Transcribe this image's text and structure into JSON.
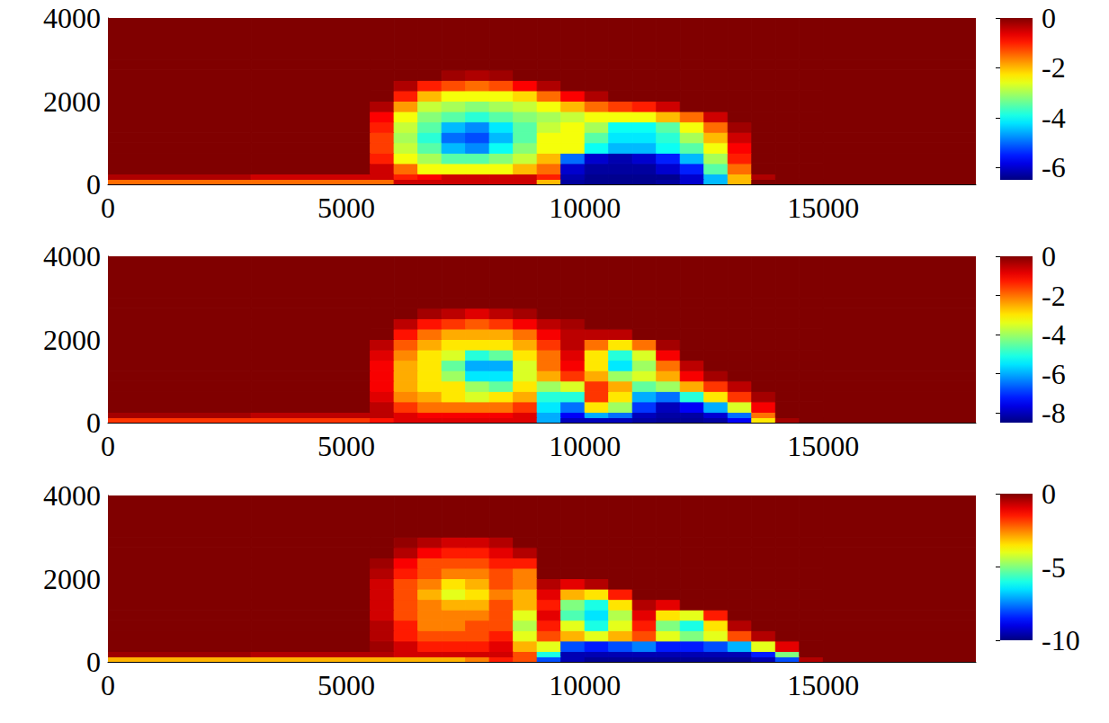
{
  "chart_data": [
    {
      "type": "heatmap",
      "xlim": [
        0,
        18200
      ],
      "ylim": [
        0,
        4000
      ],
      "xticks": [
        0,
        5000,
        10000,
        15000
      ],
      "yticks": [
        0,
        2000,
        4000
      ],
      "x_edges": [
        0,
        3000,
        5500,
        6000,
        6500,
        7000,
        7500,
        8000,
        8500,
        9000,
        9500,
        10000,
        10500,
        11000,
        11500,
        12000,
        12500,
        13000,
        13500,
        14000,
        14500,
        15000,
        18200
      ],
      "y_edges": [
        0,
        120,
        250,
        500,
        750,
        1000,
        1250,
        1500,
        1750,
        2000,
        2250,
        2500,
        2750,
        3000,
        4000
      ],
      "cells": [
        [
          -1.5,
          -1.5,
          -1.5,
          -0.5,
          -0.5,
          -0.5,
          -0.5,
          -0.5,
          -0.5,
          -2,
          -6.3,
          -6.4,
          -6.4,
          -6.4,
          -6.3,
          -6,
          -4.5,
          -2,
          0,
          0,
          0,
          0
        ],
        [
          -0.3,
          -0.5,
          -0.5,
          -1,
          -0.8,
          -0.5,
          -0.5,
          -0.5,
          -0.5,
          -1,
          -6.2,
          -6.4,
          -6.4,
          -6.4,
          -6.4,
          -6,
          -4.5,
          -2,
          -0.3,
          0,
          0,
          0
        ],
        [
          0,
          0,
          -0.5,
          -1.5,
          -2.5,
          -2.5,
          -2.5,
          -2.5,
          -2,
          -1.5,
          -6,
          -6.3,
          -6.3,
          -6.3,
          -6,
          -5.5,
          -3.5,
          -1.5,
          0,
          0,
          0,
          0
        ],
        [
          0,
          0,
          -1,
          -2.5,
          -3,
          -3.5,
          -3.5,
          -3.2,
          -2.8,
          -2,
          -5,
          -6,
          -6.2,
          -6,
          -5.5,
          -4.5,
          -3,
          -1,
          0,
          0,
          0,
          0
        ],
        [
          0,
          0,
          -1.2,
          -2.8,
          -3.5,
          -4.5,
          -4.8,
          -4,
          -3.2,
          -2.5,
          -2.5,
          -4,
          -4.5,
          -4.5,
          -4,
          -3.5,
          -2.5,
          -0.8,
          0,
          0,
          0,
          0
        ],
        [
          0,
          0,
          -1.2,
          -3,
          -3.8,
          -5,
          -5.2,
          -4.5,
          -3.5,
          -2.5,
          -2.5,
          -3.5,
          -4.2,
          -4.2,
          -3.8,
          -3,
          -2,
          -0.5,
          0,
          0,
          0,
          0
        ],
        [
          0,
          0,
          -1,
          -2.8,
          -3.5,
          -4.5,
          -4.8,
          -4.2,
          -3.5,
          -2.8,
          -2.5,
          -3,
          -4,
          -4,
          -3.5,
          -2.5,
          -1.5,
          -0.2,
          0,
          0,
          0,
          0
        ],
        [
          0,
          0,
          -0.8,
          -2.5,
          -3.2,
          -3.5,
          -3.8,
          -3.5,
          -3.2,
          -3,
          -2.8,
          -2.5,
          -2.5,
          -2.5,
          -2,
          -1.5,
          -0.5,
          0,
          0,
          0,
          0,
          0
        ],
        [
          0,
          0,
          -0.3,
          -1.8,
          -2.8,
          -3,
          -3.2,
          -3,
          -2.8,
          -2.5,
          -2,
          -1.5,
          -1.2,
          -1,
          -0.5,
          0,
          0,
          0,
          0,
          0,
          0,
          0
        ],
        [
          0,
          0,
          0,
          -1,
          -2,
          -2.5,
          -2.5,
          -2.5,
          -2.2,
          -1.5,
          -0.8,
          -0.3,
          0,
          0,
          0,
          0,
          0,
          0,
          0,
          0,
          0,
          0
        ],
        [
          0,
          0,
          0,
          -0.3,
          -1,
          -1.3,
          -1.5,
          -1.3,
          -0.8,
          -0.3,
          0,
          0,
          0,
          0,
          0,
          0,
          0,
          0,
          0,
          0,
          0,
          0
        ],
        [
          0,
          0,
          0,
          0,
          0,
          -0.2,
          -0.3,
          -0.2,
          0,
          0,
          0,
          0,
          0,
          0,
          0,
          0,
          0,
          0,
          0,
          0,
          0,
          0
        ],
        [
          0,
          0,
          0,
          0,
          0,
          0,
          0,
          0,
          0,
          0,
          0,
          0,
          0,
          0,
          0,
          0,
          0,
          0,
          0,
          0,
          0,
          0
        ],
        [
          0,
          0,
          0,
          0,
          0,
          0,
          0,
          0,
          0,
          0,
          0,
          0,
          0,
          0,
          0,
          0,
          0,
          0,
          0,
          0,
          0,
          0
        ]
      ],
      "clim": [
        -6.5,
        0
      ],
      "cticks": [
        0,
        -2,
        -4,
        -6
      ]
    },
    {
      "type": "heatmap",
      "xlim": [
        0,
        18200
      ],
      "ylim": [
        0,
        4000
      ],
      "xticks": [
        0,
        5000,
        10000,
        15000
      ],
      "yticks": [
        0,
        2000,
        4000
      ],
      "x_edges": [
        0,
        3000,
        5500,
        6000,
        6500,
        7000,
        7500,
        8000,
        8500,
        9000,
        9500,
        10000,
        10500,
        11000,
        11500,
        12000,
        12500,
        13000,
        13500,
        14000,
        14500,
        15000,
        18200
      ],
      "y_edges": [
        0,
        120,
        250,
        500,
        750,
        1000,
        1250,
        1500,
        1750,
        2000,
        2250,
        2500,
        2750,
        3000,
        4000
      ],
      "cells": [
        [
          -1.5,
          -1.5,
          -1.2,
          -0.8,
          -0.8,
          -0.8,
          -0.8,
          -0.8,
          -0.8,
          -6,
          -8,
          -8,
          -8,
          -8.2,
          -8.3,
          -8.3,
          -8.2,
          -7.5,
          -3,
          -0.3,
          0,
          0
        ],
        [
          -0.3,
          -0.5,
          -0.5,
          -0.8,
          -1,
          -1,
          -1,
          -1,
          -0.8,
          -6,
          -7.5,
          -6,
          -6.5,
          -8,
          -8.2,
          -8.2,
          -7.8,
          -6.5,
          -2,
          0,
          0,
          0
        ],
        [
          0,
          0,
          -0.5,
          -1.5,
          -2,
          -2,
          -2,
          -2,
          -1.5,
          -5.5,
          -6.5,
          -3,
          -4,
          -7,
          -8,
          -7.5,
          -6,
          -3.5,
          -1,
          0,
          0,
          0
        ],
        [
          0,
          0,
          -0.8,
          -2.2,
          -2.5,
          -3,
          -3.5,
          -3,
          -2.5,
          -5,
          -5,
          -1.5,
          -3,
          -6,
          -6.5,
          -5,
          -3,
          -1.5,
          -0.3,
          0,
          0,
          0
        ],
        [
          0,
          0,
          -1,
          -2.5,
          -3,
          -3,
          -4,
          -4.5,
          -3,
          -4,
          -3.5,
          -1.5,
          -2.5,
          -4.5,
          -4,
          -2.5,
          -1.5,
          -0.5,
          0,
          0,
          0,
          0
        ],
        [
          0,
          0,
          -1,
          -2.5,
          -3,
          -4,
          -5.5,
          -5.5,
          -3.5,
          -2.5,
          -1.5,
          -2.5,
          -4,
          -3.5,
          -2.5,
          -1,
          -0.3,
          0,
          0,
          0,
          0,
          0
        ],
        [
          0,
          0,
          -1,
          -2.5,
          -3,
          -4.5,
          -6,
          -6,
          -3.5,
          -2,
          -1,
          -3,
          -5.5,
          -4,
          -2,
          -0.5,
          0,
          0,
          0,
          0,
          0,
          0
        ],
        [
          0,
          0,
          -0.8,
          -2.2,
          -3,
          -3.5,
          -5,
          -4.5,
          -3,
          -2,
          -0.8,
          -3,
          -5,
          -3.5,
          -1,
          0,
          0,
          0,
          0,
          0,
          0,
          0
        ],
        [
          0,
          0,
          -0.5,
          -1.8,
          -2.5,
          -3,
          -3,
          -3,
          -2.5,
          -1.5,
          -0.5,
          -2,
          -3,
          -2,
          -0.3,
          0,
          0,
          0,
          0,
          0,
          0,
          0
        ],
        [
          0,
          0,
          0,
          -1.2,
          -2,
          -2.5,
          -2.5,
          -2.5,
          -2,
          -1,
          -0.5,
          -0.5,
          -0.5,
          0,
          0,
          0,
          0,
          0,
          0,
          0,
          0,
          0
        ],
        [
          0,
          0,
          0,
          -0.5,
          -1.2,
          -1.5,
          -1.8,
          -1.5,
          -1,
          -0.5,
          -0.3,
          0,
          0,
          0,
          0,
          0,
          0,
          0,
          0,
          0,
          0,
          0
        ],
        [
          0,
          0,
          0,
          0,
          -0.3,
          -0.5,
          -0.8,
          -0.5,
          -0.3,
          0,
          0,
          0,
          0,
          0,
          0,
          0,
          0,
          0,
          0,
          0,
          0,
          0
        ],
        [
          0,
          0,
          0,
          0,
          0,
          0,
          0,
          0,
          0,
          0,
          0,
          0,
          0,
          0,
          0,
          0,
          0,
          0,
          0,
          0,
          0,
          0
        ],
        [
          0,
          0,
          0,
          0,
          0,
          0,
          0,
          0,
          0,
          0,
          0,
          0,
          0,
          0,
          0,
          0,
          0,
          0,
          0,
          0,
          0,
          0
        ]
      ],
      "clim": [
        -8.5,
        0
      ],
      "cticks": [
        0,
        -2,
        -4,
        -6,
        -8
      ]
    },
    {
      "type": "heatmap",
      "xlim": [
        0,
        18200
      ],
      "ylim": [
        0,
        4000
      ],
      "xticks": [
        0,
        5000,
        10000,
        15000
      ],
      "yticks": [
        0,
        2000,
        4000
      ],
      "x_edges": [
        0,
        3000,
        5500,
        6000,
        6500,
        7000,
        7500,
        8000,
        8500,
        9000,
        9500,
        10000,
        10500,
        11000,
        11500,
        12000,
        12500,
        13000,
        13500,
        14000,
        14500,
        15000,
        18200
      ],
      "y_edges": [
        0,
        120,
        250,
        500,
        750,
        1000,
        1250,
        1500,
        1750,
        2000,
        2250,
        2500,
        2750,
        3000,
        4000
      ],
      "cells": [
        [
          -3,
          -3,
          -3,
          -3,
          -3,
          -3,
          -2.5,
          -1.5,
          -2,
          -8,
          -9.5,
          -9.8,
          -9.8,
          -9.8,
          -9.8,
          -9.8,
          -9.8,
          -9.8,
          -9.5,
          -8,
          -0.5,
          0
        ],
        [
          -0.3,
          -0.5,
          -0.5,
          -0.8,
          -0.8,
          -0.8,
          -0.8,
          -0.8,
          -2,
          -6,
          -9.5,
          -9.5,
          -9.5,
          -9.5,
          -9.5,
          -9.5,
          -9.5,
          -9.5,
          -8.5,
          -5,
          0,
          0
        ],
        [
          0,
          0,
          -0.3,
          -0.8,
          -1.5,
          -1.5,
          -1.5,
          -1,
          -3,
          -4,
          -8,
          -8.5,
          -8,
          -7.5,
          -8.5,
          -8.5,
          -8,
          -7,
          -4,
          -1,
          0,
          0
        ],
        [
          0,
          0,
          -0.5,
          -1.5,
          -2,
          -2,
          -2,
          -1.5,
          -4,
          -2,
          -3,
          -4,
          -3,
          -2,
          -4,
          -5,
          -4,
          -2,
          -0.5,
          0,
          0,
          0
        ],
        [
          0,
          0,
          -0.5,
          -1.5,
          -2.5,
          -2.5,
          -2,
          -2,
          -4.5,
          -1.5,
          -4,
          -6,
          -4,
          -1.5,
          -5,
          -6,
          -3.5,
          -0.5,
          0,
          0,
          0,
          0
        ],
        [
          0,
          0,
          -0.8,
          -2,
          -2.5,
          -2.5,
          -2.5,
          -2,
          -4,
          -1,
          -5.5,
          -6.5,
          -4.5,
          -1,
          -3.5,
          -4,
          -1.5,
          0,
          0,
          0,
          0,
          0
        ],
        [
          0,
          0,
          -0.8,
          -2,
          -2.5,
          -3,
          -3,
          -2,
          -3,
          -1.5,
          -5,
          -6,
          -3.5,
          -0.5,
          -1,
          0,
          0,
          0,
          0,
          0,
          0,
          0
        ],
        [
          0,
          0,
          -0.8,
          -2,
          -3,
          -4,
          -3.5,
          -2.5,
          -3,
          -1,
          -3,
          -3.5,
          -1.5,
          0,
          0,
          0,
          0,
          0,
          0,
          0,
          0,
          0
        ],
        [
          0,
          0,
          -0.8,
          -2,
          -2.5,
          -3.5,
          -3,
          -2,
          -2.5,
          -0.5,
          -1,
          -0.5,
          0,
          0,
          0,
          0,
          0,
          0,
          0,
          0,
          0,
          0
        ],
        [
          0,
          0,
          -0.5,
          -1.5,
          -2,
          -2.5,
          -2.5,
          -2,
          -2.5,
          0,
          0,
          0,
          0,
          0,
          0,
          0,
          0,
          0,
          0,
          0,
          0,
          0
        ],
        [
          0,
          0,
          -0.3,
          -1.2,
          -2,
          -2,
          -2,
          -1.5,
          -1.5,
          0,
          0,
          0,
          0,
          0,
          0,
          0,
          0,
          0,
          0,
          0,
          0,
          0
        ],
        [
          0,
          0,
          0,
          -0.5,
          -1.2,
          -1.5,
          -1.5,
          -1,
          -0.5,
          0,
          0,
          0,
          0,
          0,
          0,
          0,
          0,
          0,
          0,
          0,
          0,
          0
        ],
        [
          0,
          0,
          0,
          -0.2,
          -0.5,
          -0.8,
          -0.8,
          -0.5,
          0,
          0,
          0,
          0,
          0,
          0,
          0,
          0,
          0,
          0,
          0,
          0,
          0,
          0
        ],
        [
          0,
          0,
          0,
          0,
          0,
          0,
          0,
          0,
          0,
          0,
          0,
          0,
          0,
          0,
          0,
          0,
          0,
          0,
          0,
          0,
          0,
          0
        ]
      ],
      "clim": [
        -10,
        0
      ],
      "cticks": [
        0,
        -5,
        -10
      ]
    }
  ]
}
